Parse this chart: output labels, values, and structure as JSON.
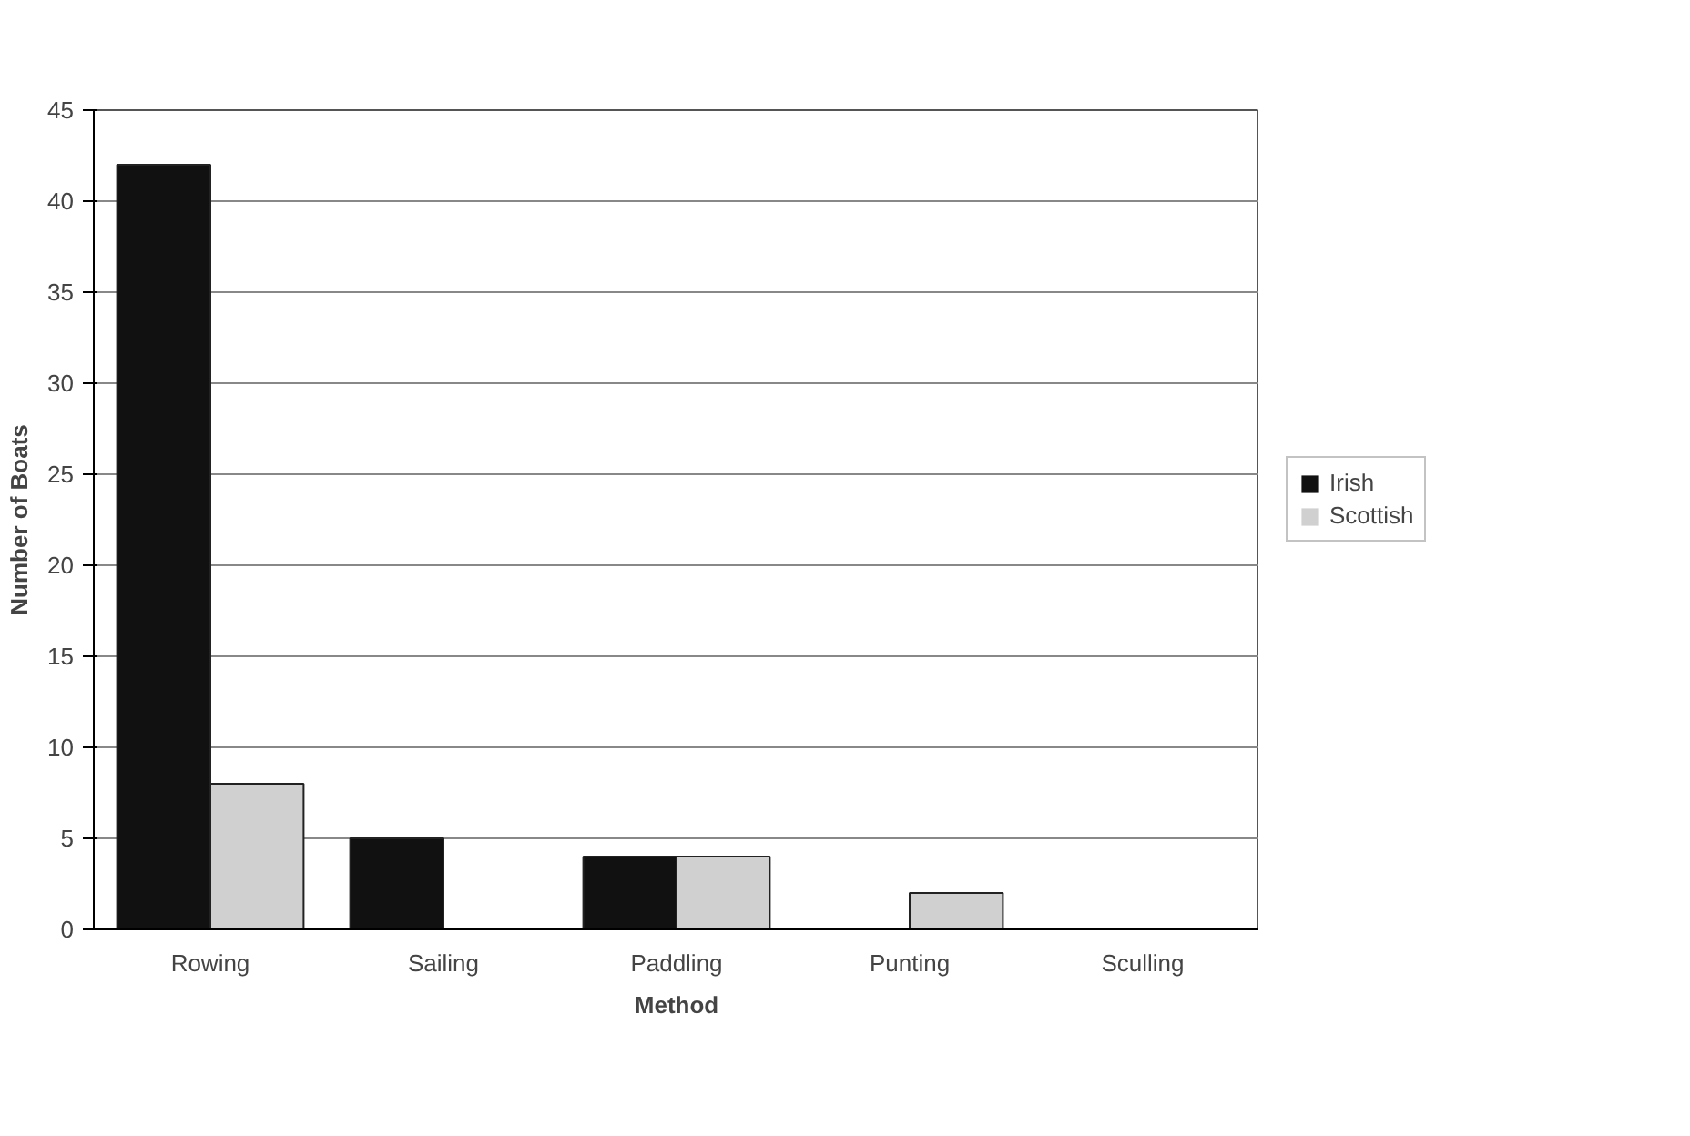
{
  "chart_data": {
    "type": "bar",
    "xlabel": "Method",
    "ylabel": "Number of Boats",
    "categories": [
      "Rowing",
      "Sailing",
      "Paddling",
      "Punting",
      "Sculling"
    ],
    "series": [
      {
        "name": "Irish",
        "color": "#111111",
        "values": [
          42,
          5,
          4,
          0,
          0
        ]
      },
      {
        "name": "Scottish",
        "color": "#d0d0d0",
        "values": [
          8,
          0,
          4,
          2,
          0
        ]
      }
    ],
    "ylim": [
      0,
      45
    ],
    "yticks": [
      0,
      5,
      10,
      15,
      20,
      25,
      30,
      35,
      40,
      45
    ],
    "grid": "y",
    "legend": "right"
  }
}
